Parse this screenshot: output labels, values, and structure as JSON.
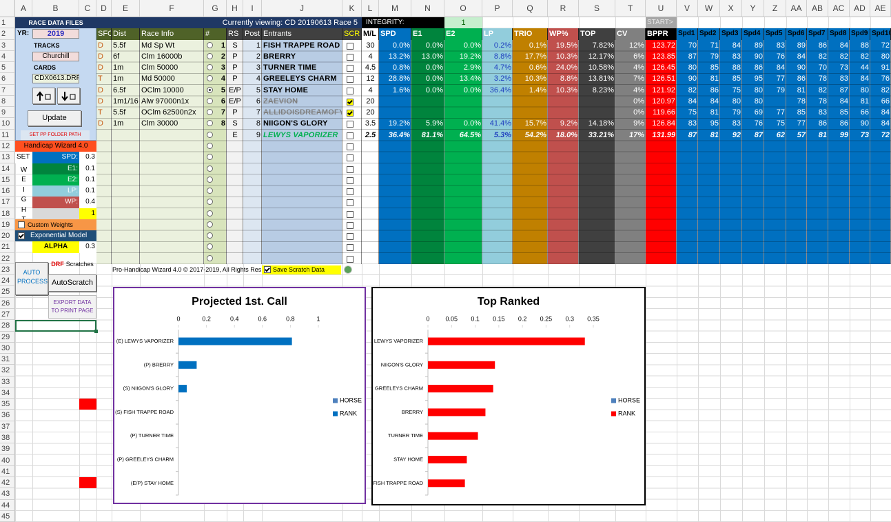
{
  "sheet": {
    "columns": [
      "A",
      "B",
      "C",
      "D",
      "E",
      "F",
      "G",
      "H",
      "I",
      "J",
      "K",
      "L",
      "M",
      "N",
      "O",
      "P",
      "Q",
      "R",
      "S",
      "T",
      "U",
      "V",
      "W",
      "X",
      "Y",
      "Z",
      "AA",
      "AB",
      "AC",
      "AD",
      "AE"
    ],
    "rows": [
      1,
      2,
      3,
      4,
      5,
      6,
      7,
      8,
      9,
      10,
      11,
      12,
      13,
      14,
      15,
      16,
      17,
      18,
      19,
      20,
      21,
      22,
      23,
      24,
      25,
      26,
      27,
      28,
      29,
      30,
      31,
      32,
      33,
      34,
      35,
      36,
      37,
      38,
      39,
      40,
      41,
      42,
      43,
      44,
      45
    ]
  },
  "panel": {
    "title": "RACE DATA FILES",
    "yr_label": "YR:",
    "yr": "2019",
    "tracks_label": "TRACKS",
    "track": "Churchill",
    "cards_label": "CARDS",
    "card": "CDX0613.DRF",
    "update": "Update",
    "set_path": "SET PP FOLDER PATH",
    "wizard": "Handicap Wizard 4.0",
    "set": "SET",
    "weight_letters": [
      "W",
      "E",
      "I",
      "G",
      "H",
      "T"
    ],
    "weights": [
      {
        "label": "SPD:",
        "value": 0.3
      },
      {
        "label": "E1:",
        "value": 0.1
      },
      {
        "label": "E2:",
        "value": 0.1
      },
      {
        "label": "LP:",
        "value": 0.1
      },
      {
        "label": "WP:",
        "value": 0.4
      }
    ],
    "weight_total": 1,
    "custom_weights": "Custom Weights",
    "exponential": "Exponential Model",
    "alpha_label": "ALPHA",
    "alpha": 0.3,
    "auto_process": "AUTO PROCESS",
    "drf": "DRF",
    "scratches": "Scratches",
    "autoscratch": "AutoScratch",
    "export": "EXPORT DATA TO PRINT PAGE"
  },
  "race": {
    "viewing": "Currently viewing: CD 20190613 Race 5",
    "integrity_label": "INTEGRITY:",
    "integrity": "1",
    "start": "START>",
    "headers": [
      "SFC",
      "Dist",
      "Race Info",
      "#",
      "RS",
      "Post",
      "Entrants",
      "SCR",
      "M/L",
      "SPD",
      "E1",
      "E2",
      "LP",
      "TRIO",
      "WP%",
      "TOP",
      "CV",
      "BPPR",
      "Spd1",
      "Spd2",
      "Spd3",
      "Spd4",
      "Spd5",
      "Spd6",
      "Spd7",
      "Spd8",
      "Spd9",
      "Spd10"
    ],
    "rows": [
      [
        "D",
        "5.5f",
        "Md Sp Wt",
        "1",
        "S",
        "1",
        "FISH TRAPPE ROAD",
        null,
        "30",
        "0.0%",
        "0.0%",
        "0.0%",
        "0.2%",
        "0.1%",
        "19.5%",
        "7.82%",
        "12%",
        "123.72",
        "70",
        "71",
        "84",
        "89",
        "83",
        "89",
        "86",
        "84",
        "88",
        "72"
      ],
      [
        "D",
        "6f",
        "Clm 16000b",
        "2",
        "P",
        "2",
        "BRERRY",
        null,
        "4",
        "13.2%",
        "13.0%",
        "19.2%",
        "8.8%",
        "17.7%",
        "10.3%",
        "12.17%",
        "6%",
        "123.85",
        "87",
        "79",
        "83",
        "90",
        "76",
        "84",
        "82",
        "82",
        "82",
        "80"
      ],
      [
        "D",
        "1m",
        "Clm 50000",
        "3",
        "P",
        "3",
        "TURNER TIME",
        null,
        "4.5",
        "0.8%",
        "0.0%",
        "2.9%",
        "4.7%",
        "0.6%",
        "24.0%",
        "10.58%",
        "4%",
        "126.45",
        "80",
        "85",
        "88",
        "86",
        "84",
        "90",
        "70",
        "73",
        "44",
        "91"
      ],
      [
        "T",
        "1m",
        "Md 50000",
        "4",
        "P",
        "4",
        "GREELEYS CHARM",
        null,
        "12",
        "28.8%",
        "0.0%",
        "13.4%",
        "3.2%",
        "10.3%",
        "8.8%",
        "13.81%",
        "7%",
        "126.51",
        "90",
        "81",
        "85",
        "95",
        "77",
        "86",
        "78",
        "83",
        "84",
        "76"
      ],
      [
        "D",
        "6.5f",
        "OClm 10000",
        "5",
        "E/P",
        "5",
        "STAY HOME",
        null,
        "4",
        "1.6%",
        "0.0%",
        "0.0%",
        "36.4%",
        "1.4%",
        "10.3%",
        "8.23%",
        "4%",
        "121.92",
        "82",
        "86",
        "75",
        "80",
        "79",
        "81",
        "82",
        "87",
        "80",
        "82"
      ],
      [
        "D",
        "1m1/16",
        "Alw 97000n1x",
        "6",
        "E/P",
        "6",
        "ZAEVION",
        null,
        "20",
        null,
        null,
        null,
        null,
        null,
        null,
        null,
        "0%",
        "120.97",
        "84",
        "84",
        "80",
        "80",
        null,
        "78",
        "78",
        "84",
        "81",
        "66"
      ],
      [
        "T",
        "5.5f",
        "OClm 62500n2x",
        "7",
        "P",
        "7",
        "ALLIDOISDREAMOFYO",
        null,
        "20",
        null,
        null,
        null,
        null,
        null,
        null,
        null,
        "0%",
        "119.66",
        "75",
        "81",
        "79",
        "69",
        "77",
        "85",
        "83",
        "85",
        "66",
        "84"
      ],
      [
        "D",
        "1m",
        "Clm 30000",
        "8",
        "S",
        "8",
        "NIIGON'S GLORY",
        null,
        "3.5",
        "19.2%",
        "5.9%",
        "0.0%",
        "41.4%",
        "15.7%",
        "9.2%",
        "14.18%",
        "9%",
        "126.84",
        "83",
        "95",
        "83",
        "76",
        "75",
        "77",
        "86",
        "86",
        "90",
        "84"
      ],
      [
        null,
        null,
        null,
        null,
        "E",
        "9",
        "LEWYS VAPORIZER",
        null,
        "2.5",
        "36.4%",
        "81.1%",
        "64.5%",
        "5.3%",
        "54.2%",
        "18.0%",
        "33.21%",
        "17%",
        "131.99",
        "87",
        "81",
        "92",
        "87",
        "62",
        "57",
        "81",
        "99",
        "73",
        "72"
      ]
    ],
    "scratched": [
      false,
      false,
      false,
      false,
      false,
      true,
      true,
      false,
      false
    ]
  },
  "footer": {
    "copyright": "Pro-Handicap Wizard 4.0 © 2017-2019, All Rights Res",
    "save_scratch": "Save Scratch Data"
  },
  "chart_data": [
    {
      "type": "bar",
      "orientation": "horizontal",
      "title": "Projected 1st. Call",
      "categories": [
        "(E) LEWYS VAPORIZER",
        "(P) BRERRY",
        "(S) NIIGON'S GLORY",
        "(S) FISH TRAPPE ROAD",
        "(P) TURNER TIME",
        "(P) GREELEYS CHARM",
        "(E/P) STAY HOME"
      ],
      "series": [
        {
          "name": "HORSE",
          "color": "#4f81bd",
          "values": [
            null,
            null,
            null,
            null,
            null,
            null,
            null
          ]
        },
        {
          "name": "RANK",
          "color": "#0070c0",
          "values": [
            0.811,
            0.13,
            0.059,
            0,
            0,
            0,
            0
          ]
        }
      ],
      "xlim": [
        0,
        1
      ],
      "xticks": [
        0,
        0.2,
        0.4,
        0.6,
        0.8,
        1
      ]
    },
    {
      "type": "bar",
      "orientation": "horizontal",
      "title": "Top Ranked",
      "categories": [
        "LEWYS VAPORIZER",
        "NIIGON'S GLORY",
        "GREELEYS CHARM",
        "BRERRY",
        "TURNER TIME",
        "STAY HOME",
        "FISH TRAPPE ROAD"
      ],
      "series": [
        {
          "name": "HORSE",
          "color": "#4f81bd",
          "values": [
            null,
            null,
            null,
            null,
            null,
            null,
            null
          ]
        },
        {
          "name": "RANK",
          "color": "#ff0000",
          "values": [
            0.3321,
            0.1418,
            0.1381,
            0.1217,
            0.1058,
            0.0823,
            0.0782
          ]
        }
      ],
      "xlim": [
        0,
        0.35
      ],
      "xticks": [
        0,
        0.05,
        0.1,
        0.15,
        0.2,
        0.25,
        0.3,
        0.35
      ]
    }
  ]
}
